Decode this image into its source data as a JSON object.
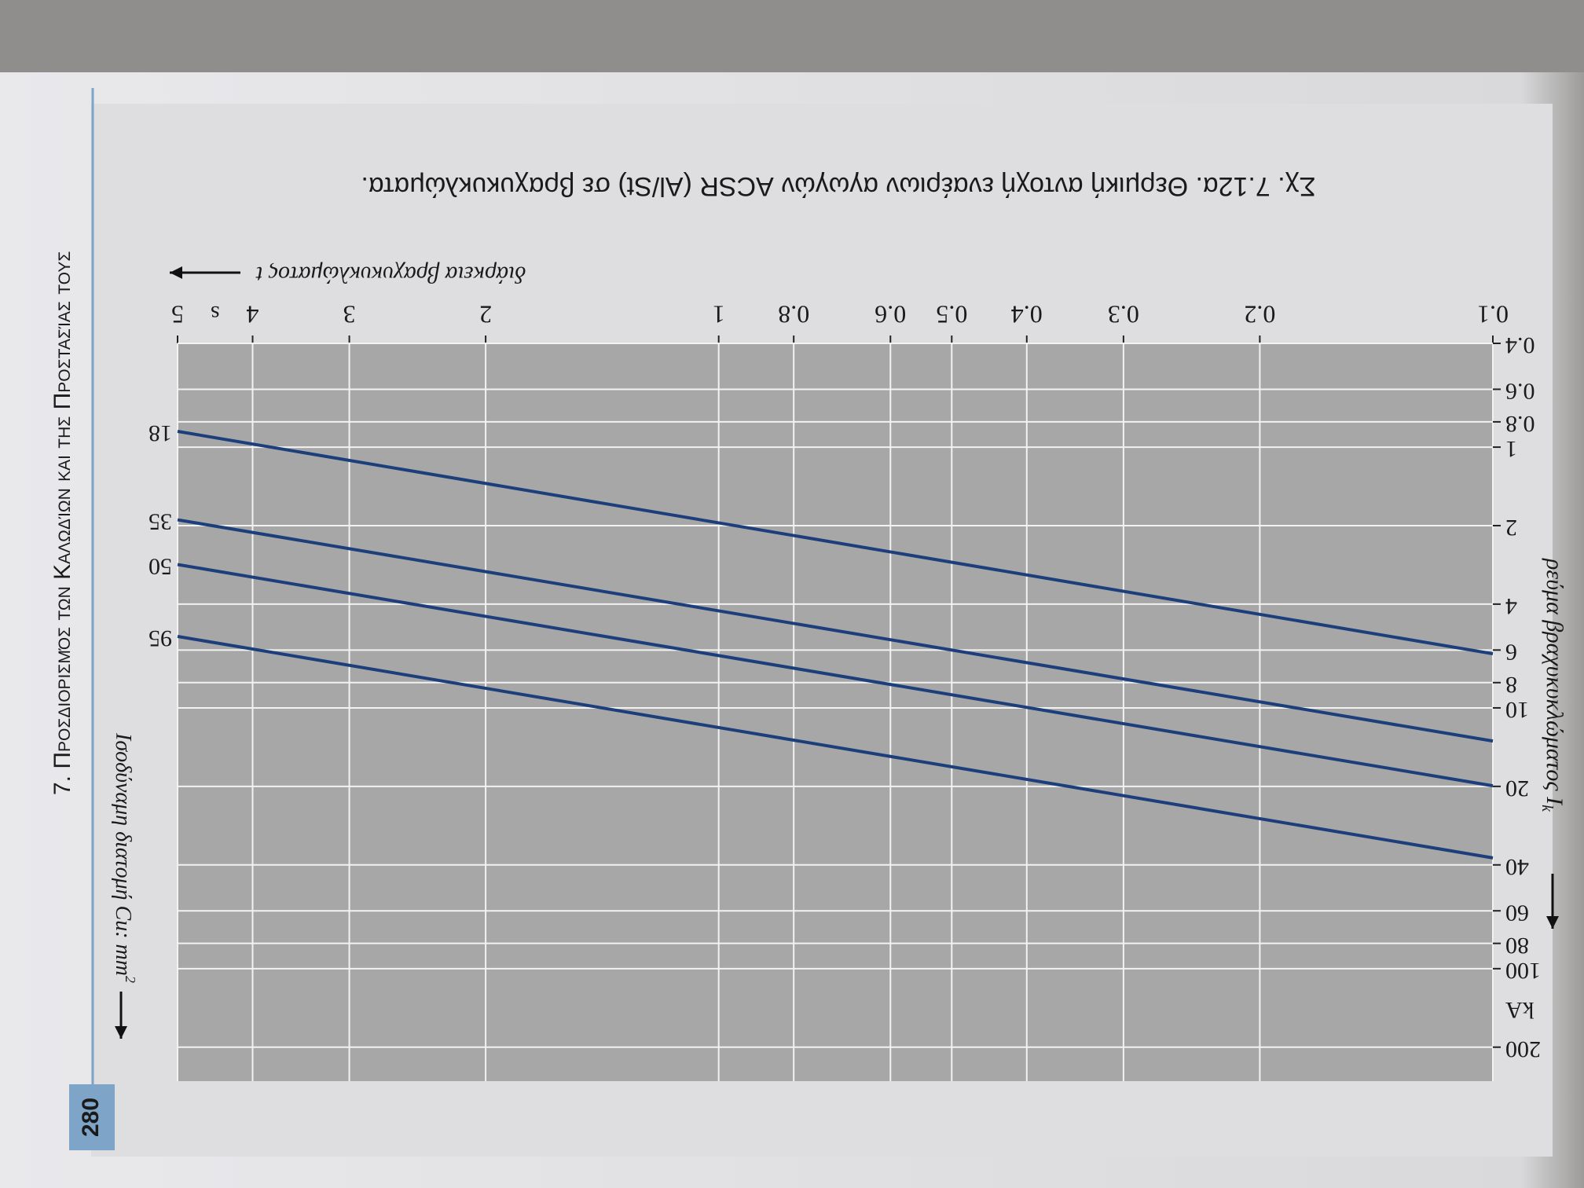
{
  "chart_data": {
    "type": "line",
    "header": "7. Προσδιορισμός των Καλωδίων και της Προστασίας τους",
    "page_number": "280",
    "title": "Σχ. 7.12α. Θερμική αντοχή εναέριων αγωγών ACSR (Al/St) σε βραχυκυκλώματα.",
    "x_label": "διάρκεια βραχυκυκλώματος t",
    "x_unit": "s",
    "y_label": "ρεύμα βραχυκυκλώματος I",
    "y_label_sub": "k",
    "y_unit": "kA",
    "legend_title": "Ισοδύναμη διατομή Cu: mm",
    "legend_title_sup": "2",
    "x": [
      0.1,
      5
    ],
    "series": [
      {
        "name": "18",
        "color": "#1c3f7c",
        "values": [
          6.2,
          0.87
        ]
      },
      {
        "name": "35",
        "color": "#1c3f7c",
        "values": [
          13.4,
          1.9
        ]
      },
      {
        "name": "50",
        "color": "#1c3f7c",
        "values": [
          19.9,
          2.82
        ]
      },
      {
        "name": "95",
        "color": "#1c3f7c",
        "values": [
          37.6,
          5.32
        ]
      }
    ],
    "xlim": [
      0.1,
      5
    ],
    "ylim": [
      0.4,
      270
    ],
    "xticks": [
      0.1,
      0.2,
      0.3,
      0.4,
      0.5,
      0.6,
      0.8,
      1,
      2,
      3,
      4,
      5
    ],
    "yticks": [
      0.4,
      0.6,
      0.8,
      1,
      2,
      4,
      6,
      8,
      10,
      20,
      40,
      60,
      80,
      100,
      200
    ],
    "log_x": true,
    "log_y": true,
    "grid": true
  }
}
